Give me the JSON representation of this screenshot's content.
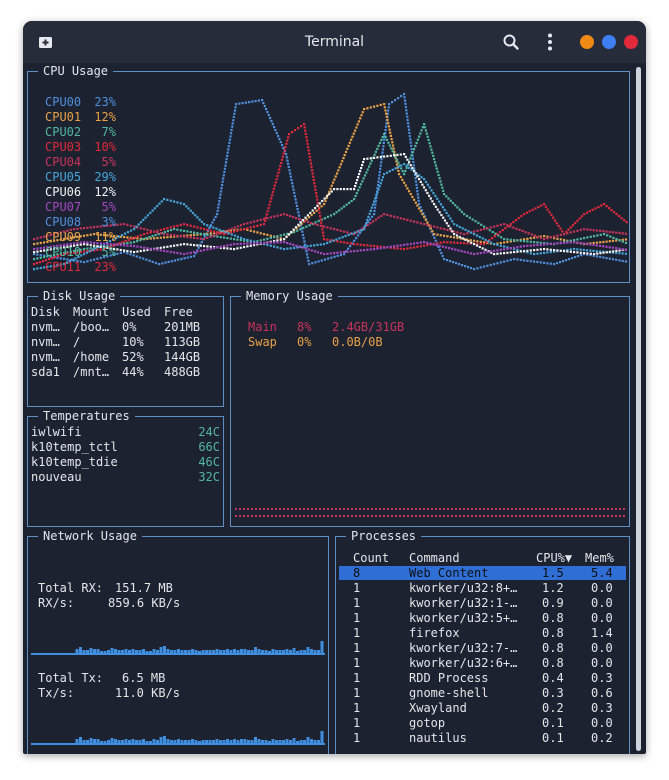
{
  "window": {
    "title": "Terminal"
  },
  "cpu": {
    "title": "CPU Usage",
    "cores": [
      {
        "name": "CPU00",
        "value": "23%",
        "color": "#4f8fdc"
      },
      {
        "name": "CPU01",
        "value": "12%",
        "color": "#e8a248"
      },
      {
        "name": "CPU02",
        "value": "7%",
        "color": "#52b7a0"
      },
      {
        "name": "CPU03",
        "value": "10%",
        "color": "#e0293b"
      },
      {
        "name": "CPU04",
        "value": "5%",
        "color": "#c8335a"
      },
      {
        "name": "CPU05",
        "value": "29%",
        "color": "#45a5d9"
      },
      {
        "name": "CPU06",
        "value": "12%",
        "color": "#f2f2f2"
      },
      {
        "name": "CPU07",
        "value": "5%",
        "color": "#a348c0"
      },
      {
        "name": "CPU08",
        "value": "3%",
        "color": "#4f8fdc"
      },
      {
        "name": "CPU09",
        "value": "11%",
        "color": "#e8a248"
      },
      {
        "name": "CPU10",
        "value": "5%",
        "color": "#52b7a0"
      },
      {
        "name": "CPU11",
        "value": "23%",
        "color": "#e0293b"
      }
    ]
  },
  "disk": {
    "title": "Disk Usage",
    "headers": [
      "Disk",
      "Mount",
      "Used",
      "Free"
    ],
    "rows": [
      [
        "nvm…",
        "/boo…",
        "0%",
        "201MB"
      ],
      [
        "nvm…",
        "/",
        "10%",
        "113GB"
      ],
      [
        "nvm…",
        "/home",
        "52%",
        "144GB"
      ],
      [
        "sda1",
        "/mnt…",
        "44%",
        "488GB"
      ]
    ]
  },
  "temps": {
    "title": "Temperatures",
    "rows": [
      {
        "name": "iwlwifi",
        "value": "24C"
      },
      {
        "name": "k10temp_tctl",
        "value": "66C"
      },
      {
        "name": "k10temp_tdie",
        "value": "46C"
      },
      {
        "name": "nouveau",
        "value": "32C"
      }
    ]
  },
  "memory": {
    "title": "Memory Usage",
    "rows": [
      {
        "label": "Main",
        "pct": "8%",
        "amount": "2.4GB/31GB",
        "color": "#c8335a"
      },
      {
        "label": "Swap",
        "pct": "0%",
        "amount": "0.0B/0B",
        "color": "#e8a248"
      }
    ]
  },
  "network": {
    "title": "Network Usage",
    "total_rx_label": "Total RX:",
    "total_rx": "151.7 MB",
    "rx_rate_label": "RX/s:",
    "rx_rate": "859.6 KB/s",
    "total_tx_label": "Total Tx:",
    "total_tx": "6.5 MB",
    "tx_rate_label": "Tx/s:",
    "tx_rate": "11.0 KB/s"
  },
  "processes": {
    "title": "Processes",
    "headers": {
      "count": "Count",
      "command": "Command",
      "cpu": "CPU%▼",
      "mem": "Mem%"
    },
    "rows": [
      {
        "count": "8",
        "command": "Web Content",
        "cpu": "1.5",
        "mem": "5.4",
        "selected": true
      },
      {
        "count": "1",
        "command": "kworker/u32:8+…",
        "cpu": "1.2",
        "mem": "0.0"
      },
      {
        "count": "1",
        "command": "kworker/u32:1-…",
        "cpu": "0.9",
        "mem": "0.0"
      },
      {
        "count": "1",
        "command": "kworker/u32:5+…",
        "cpu": "0.8",
        "mem": "0.0"
      },
      {
        "count": "1",
        "command": "firefox",
        "cpu": "0.8",
        "mem": "1.4"
      },
      {
        "count": "1",
        "command": "kworker/u32:7-…",
        "cpu": "0.8",
        "mem": "0.0"
      },
      {
        "count": "1",
        "command": "kworker/u32:6+…",
        "cpu": "0.8",
        "mem": "0.0"
      },
      {
        "count": "1",
        "command": "RDD Process",
        "cpu": "0.4",
        "mem": "0.3"
      },
      {
        "count": "1",
        "command": "gnome-shell",
        "cpu": "0.3",
        "mem": "0.6"
      },
      {
        "count": "1",
        "command": "Xwayland",
        "cpu": "0.2",
        "mem": "0.3"
      },
      {
        "count": "1",
        "command": "gotop",
        "cpu": "0.1",
        "mem": "0.0"
      },
      {
        "count": "1",
        "command": "nautilus",
        "cpu": "0.1",
        "mem": "0.2"
      }
    ]
  },
  "colors": {
    "border": "#5d8fc4",
    "selected_row": "#2f6ed4",
    "accent": "#4f8fdc",
    "close": "#e0293b",
    "maximize": "#3d7ef0",
    "minimize": "#f08a14"
  }
}
